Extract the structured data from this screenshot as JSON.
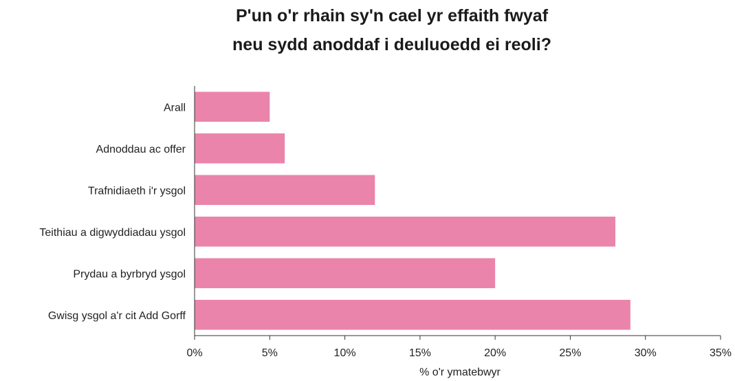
{
  "chart_data": {
    "type": "bar",
    "orientation": "horizontal",
    "title_lines": [
      "P'un o'r rhain sy'n cael yr effaith fwyaf",
      "neu sydd anoddaf i deuluoedd ei reoli?"
    ],
    "categories": [
      "Arall",
      "Adnoddau ac offer",
      "Trafnidiaeth i'r ysgol",
      "Teithiau a digwyddiadau ysgol",
      "Prydau a byrbryd ysgol",
      "Gwisg ysgol a'r cit Add Gorff"
    ],
    "values": [
      5,
      6,
      12,
      28,
      20,
      29
    ],
    "xlabel": "% o'r ymatebwyr",
    "ylabel": "",
    "xlim": [
      0,
      35
    ],
    "ticks": [
      0,
      5,
      10,
      15,
      20,
      25,
      30,
      35
    ],
    "tick_labels": [
      "0%",
      "5%",
      "10%",
      "15%",
      "20%",
      "25%",
      "30%",
      "35%"
    ],
    "bar_color": "#ea84aa",
    "grid": false,
    "legend": "none"
  }
}
